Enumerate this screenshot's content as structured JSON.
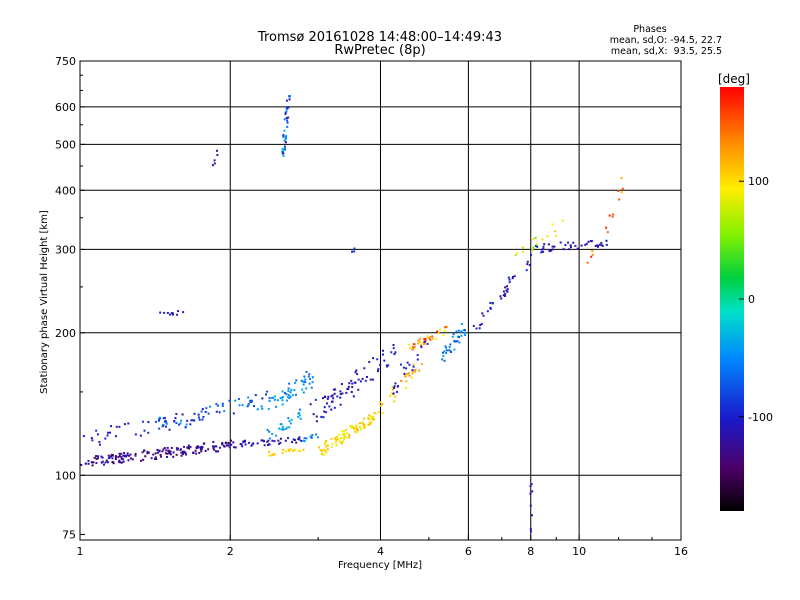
{
  "chart_data": {
    "type": "scatter",
    "title": "Tromsø 20161028 14:48:00–14:49:43",
    "subtitle": "RwPretec (8p)",
    "xlabel": "Frequency [MHz]",
    "ylabel": "Stationary phase Virtual Height [km]",
    "x_scale": "log",
    "y_scale": "log",
    "xlim": [
      1,
      16
    ],
    "ylim": [
      73,
      750
    ],
    "x_ticks": [
      1,
      2,
      4,
      6,
      8,
      10,
      16
    ],
    "x_tick_labels": [
      "1",
      "2",
      "4",
      "6",
      "8",
      "10",
      "16"
    ],
    "x_gridlines": [
      2,
      4,
      6,
      8,
      10
    ],
    "y_ticks": [
      75,
      100,
      200,
      300,
      400,
      500,
      600,
      750
    ],
    "y_tick_labels": [
      "75",
      "100",
      "200",
      "300",
      "400",
      "500",
      "600",
      "750"
    ],
    "y_gridlines": [
      100,
      200,
      300,
      400,
      500,
      600
    ],
    "stats": {
      "heading": "Phases",
      "line_o": "mean, sd,O: -94.5, 22.7",
      "line_x": "mean, sd,X:  93.5, 25.5"
    },
    "colorbar": {
      "label": "[deg]",
      "range": [
        -180,
        180
      ],
      "tick_values": [
        100,
        0,
        -100
      ],
      "tick_labels": [
        "100",
        "0",
        "-100"
      ]
    },
    "clusters": [
      {
        "x_start": 1.0,
        "x_end": 2.0,
        "y_start": 106,
        "y_end": 116,
        "count": 170,
        "jitter": 0.025,
        "phase_min": -150,
        "phase_max": -105
      },
      {
        "x_start": 2.0,
        "x_end": 2.8,
        "y_start": 116,
        "y_end": 119,
        "count": 45,
        "jitter": 0.015,
        "phase_min": -120,
        "phase_max": -100
      },
      {
        "x_start": 2.4,
        "x_end": 2.8,
        "y_start": 111,
        "y_end": 113,
        "count": 18,
        "jitter": 0.012,
        "phase_min": 95,
        "phase_max": 115
      },
      {
        "x_start": 2.8,
        "x_end": 3.0,
        "y_start": 119,
        "y_end": 122,
        "count": 10,
        "jitter": 0.015,
        "phase_min": -70,
        "phase_max": -40
      },
      {
        "x_start": 3.0,
        "x_end": 3.9,
        "y_start": 112,
        "y_end": 133,
        "count": 90,
        "jitter": 0.025,
        "phase_min": 80,
        "phase_max": 120
      },
      {
        "x_start": 3.9,
        "x_end": 4.8,
        "y_start": 135,
        "y_end": 170,
        "count": 30,
        "jitter": 0.03,
        "phase_min": 90,
        "phase_max": 140
      },
      {
        "x_start": 4.5,
        "x_end": 5.5,
        "y_start": 185,
        "y_end": 203,
        "count": 35,
        "jitter": 0.02,
        "phase_min": 95,
        "phase_max": 175
      },
      {
        "x_start": 5.3,
        "x_end": 5.9,
        "y_start": 176,
        "y_end": 205,
        "count": 35,
        "jitter": 0.03,
        "phase_min": -80,
        "phase_max": -30
      },
      {
        "x_start": 6.2,
        "x_end": 8.0,
        "y_start": 205,
        "y_end": 290,
        "count": 35,
        "jitter": 0.03,
        "phase_min": -125,
        "phase_max": -90
      },
      {
        "x_start": 8.0,
        "x_end": 11.5,
        "y_start": 300,
        "y_end": 312,
        "count": 40,
        "jitter": 0.02,
        "phase_min": -120,
        "phase_max": -95
      },
      {
        "x_start": 7.2,
        "x_end": 9.5,
        "y_start": 290,
        "y_end": 340,
        "count": 16,
        "jitter": 0.03,
        "phase_min": 40,
        "phase_max": 110
      },
      {
        "x_start": 10.5,
        "x_end": 12.5,
        "y_start": 280,
        "y_end": 440,
        "count": 14,
        "jitter": 0.04,
        "phase_min": 110,
        "phase_max": 170
      },
      {
        "x_start": 1.0,
        "x_end": 1.8,
        "y_start": 118,
        "y_end": 135,
        "count": 45,
        "jitter": 0.04,
        "phase_min": -115,
        "phase_max": -85
      },
      {
        "x_start": 1.4,
        "x_end": 2.4,
        "y_start": 126,
        "y_end": 145,
        "count": 55,
        "jitter": 0.04,
        "phase_min": -100,
        "phase_max": -40
      },
      {
        "x_start": 2.4,
        "x_end": 2.9,
        "y_start": 140,
        "y_end": 160,
        "count": 50,
        "jitter": 0.04,
        "phase_min": -70,
        "phase_max": -30
      },
      {
        "x_start": 2.4,
        "x_end": 2.8,
        "y_start": 121,
        "y_end": 135,
        "count": 25,
        "jitter": 0.03,
        "phase_min": -60,
        "phase_max": -20
      },
      {
        "x_start": 2.9,
        "x_end": 4.3,
        "y_start": 135,
        "y_end": 182,
        "count": 75,
        "jitter": 0.05,
        "phase_min": -125,
        "phase_max": -90
      },
      {
        "x_start": 4.2,
        "x_end": 5.0,
        "y_start": 150,
        "y_end": 200,
        "count": 20,
        "jitter": 0.05,
        "phase_min": -115,
        "phase_max": -90
      },
      {
        "x_start": 2.55,
        "x_end": 2.62,
        "y_start": 470,
        "y_end": 640,
        "count": 40,
        "jitter": 0.015,
        "phase_min": -120,
        "phase_max": -20
      },
      {
        "x_start": 1.42,
        "x_end": 1.62,
        "y_start": 218,
        "y_end": 221,
        "count": 10,
        "jitter": 0.01,
        "phase_min": -110,
        "phase_max": -95
      },
      {
        "x_start": 1.85,
        "x_end": 1.89,
        "y_start": 455,
        "y_end": 480,
        "count": 5,
        "jitter": 0.01,
        "phase_min": -115,
        "phase_max": -100
      },
      {
        "x_start": 3.45,
        "x_end": 3.55,
        "y_start": 295,
        "y_end": 300,
        "count": 4,
        "jitter": 0.01,
        "phase_min": -100,
        "phase_max": -85
      },
      {
        "x_start": 8.0,
        "x_end": 8.03,
        "y_start": 75,
        "y_end": 110,
        "count": 8,
        "jitter": 0.01,
        "phase_min": -115,
        "phase_max": -100
      }
    ]
  }
}
